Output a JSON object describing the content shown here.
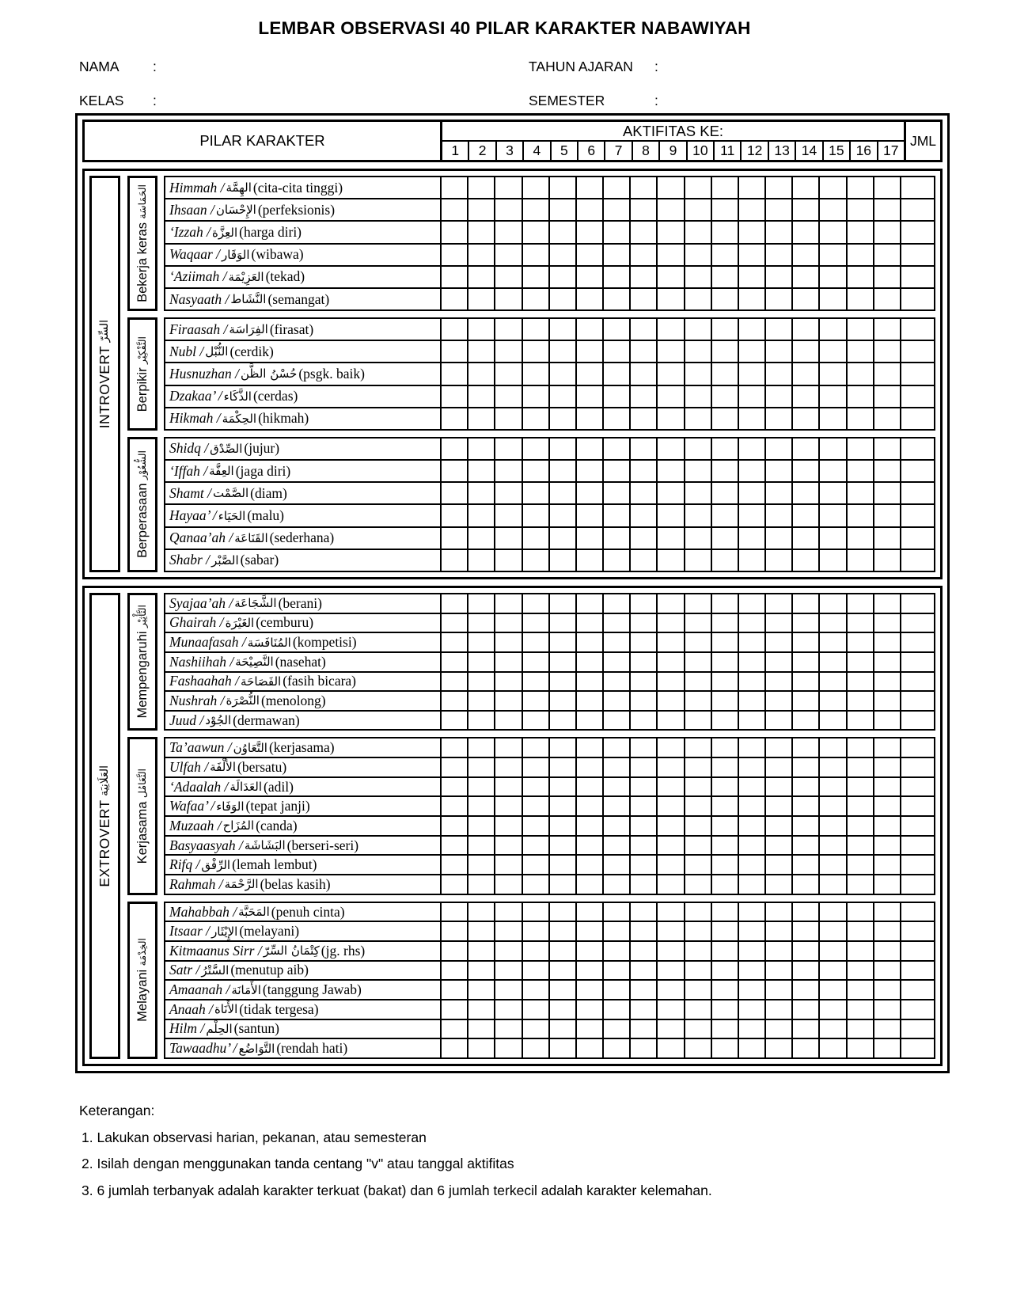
{
  "title": "LEMBAR OBSERVASI 40 PILAR KARAKTER NABAWIYAH",
  "form_fields": {
    "colon": ":",
    "nama_label": "NAMA",
    "kelas_label": "KELAS",
    "tahun_label": "TAHUN AJARAN",
    "semester_label": "SEMESTER"
  },
  "table": {
    "pilar_header": "PILAR KARAKTER",
    "aktifitas_header": "AKTIFITAS KE:",
    "activity_columns": [
      "1",
      "2",
      "3",
      "4",
      "5",
      "6",
      "7",
      "8",
      "9",
      "10",
      "11",
      "12",
      "13",
      "14",
      "15",
      "16",
      "17"
    ],
    "jml_header": "JML",
    "sections": [
      {
        "name": "INTROVERT",
        "arabic": "السِّرّ",
        "groups": [
          {
            "name": "Bekerja keras",
            "arabic": "الحَمَاسَة",
            "rows": [
              {
                "translit": "Himmah",
                "arabic": "الهِمَّة",
                "meaning": "(cita-cita tinggi)"
              },
              {
                "translit": "Ihsaan",
                "arabic": "الإِحْسَان",
                "meaning": "(perfeksionis)"
              },
              {
                "translit": "‘Izzah",
                "arabic": "العِزَّة",
                "meaning": "(harga diri)"
              },
              {
                "translit": "Waqaar",
                "arabic": "الوَقَار",
                "meaning": "(wibawa)"
              },
              {
                "translit": "‘Aziimah",
                "arabic": "العَزِيْمَة",
                "meaning": "(tekad)"
              },
              {
                "translit": "Nasyaath",
                "arabic": "النَّشَاط",
                "meaning": "(semangat)"
              }
            ]
          },
          {
            "name": "Berpikir",
            "arabic": "التَّفْكِيْر",
            "rows": [
              {
                "translit": "Firaasah",
                "arabic": "الفِرَاسَة",
                "meaning": "(firasat)"
              },
              {
                "translit": "Nubl",
                "arabic": "النُّبْل",
                "meaning": "(cerdik)"
              },
              {
                "translit": "Husnuzhan",
                "arabic": "حُسْنُ الظَّن",
                "meaning": "(psgk. baik)"
              },
              {
                "translit": "Dzakaa’",
                "arabic": "الذَّكَاء",
                "meaning": "(cerdas)"
              },
              {
                "translit": "Hikmah",
                "arabic": "الحِكْمَة",
                "meaning": "(hikmah)"
              }
            ]
          },
          {
            "name": "Berperasaan",
            "arabic": "الشُّعُوْر",
            "rows": [
              {
                "translit": "Shidq",
                "arabic": "الصِّدْق",
                "meaning": "(jujur)"
              },
              {
                "translit": "‘Iffah",
                "arabic": "العِفَّة",
                "meaning": "(jaga diri)"
              },
              {
                "translit": "Shamt",
                "arabic": "الصَّمْت",
                "meaning": "(diam)"
              },
              {
                "translit": "Hayaa’",
                "arabic": "الحَيَاء",
                "meaning": "(malu)"
              },
              {
                "translit": "Qanaa’ah",
                "arabic": "القَنَاعَة",
                "meaning": "(sederhana)"
              },
              {
                "translit": "Shabr",
                "arabic": "الصَّبْر",
                "meaning": "(sabar)"
              }
            ]
          }
        ]
      },
      {
        "name": "EXTROVERT",
        "arabic": "العَلَانِيَة",
        "groups": [
          {
            "name": "Mempengaruhi",
            "arabic": "التَّأْثِيْر",
            "rows": [
              {
                "translit": "Syajaa’ah",
                "arabic": "الشَّجَاعَة",
                "meaning": "(berani)"
              },
              {
                "translit": "Ghairah",
                "arabic": "الغَيْرَة",
                "meaning": "(cemburu)"
              },
              {
                "translit": "Munaafasah",
                "arabic": "المُنَافَسَة",
                "meaning": "(kompetisi)"
              },
              {
                "translit": "Nashiihah",
                "arabic": "النَّصِيْحَة",
                "meaning": "(nasehat)"
              },
              {
                "translit": "Fashaahah",
                "arabic": "الفَصَاحَة",
                "meaning": "(fasih bicara)"
              },
              {
                "translit": "Nushrah",
                "arabic": "النُّصْرَة",
                "meaning": "(menolong)"
              },
              {
                "translit": "Juud",
                "arabic": "الجُوْد",
                "meaning": "(dermawan)"
              }
            ]
          },
          {
            "name": "Kerjasama",
            "arabic": "التَّعَامُل",
            "rows": [
              {
                "translit": "Ta’aawun",
                "arabic": "التَّعَاوُن",
                "meaning": "(kerjasama)"
              },
              {
                "translit": "Ulfah",
                "arabic": "الأُلْفَة",
                "meaning": "(bersatu)"
              },
              {
                "translit": "‘Adaalah",
                "arabic": "العَدَالَة",
                "meaning": "(adil)"
              },
              {
                "translit": "Wafaa’",
                "arabic": "الوَفَاء",
                "meaning": "(tepat janji)"
              },
              {
                "translit": "Muzaah",
                "arabic": "المُزَاح",
                "meaning": "(canda)"
              },
              {
                "translit": "Basyaasyah",
                "arabic": "البَشَاشَة",
                "meaning": "(berseri-seri)"
              },
              {
                "translit": "Rifq",
                "arabic": "الرِّفْق",
                "meaning": "(lemah lembut)"
              },
              {
                "translit": "Rahmah",
                "arabic": "الرَّحْمَة",
                "meaning": "(belas kasih)"
              }
            ]
          },
          {
            "name": "Melayani",
            "arabic": "الخِدْمَة",
            "rows": [
              {
                "translit": "Mahabbah",
                "arabic": "المَحَبَّة",
                "meaning": "(penuh cinta)"
              },
              {
                "translit": "Itsaar",
                "arabic": "الإِيْثَار",
                "meaning": "(melayani)"
              },
              {
                "translit": "Kitmaanus Sirr",
                "arabic": "كِتْمَانُ السِّرّ",
                "meaning": "(jg. rhs)"
              },
              {
                "translit": "Satr",
                "arabic": "السَّتْرُ",
                "meaning": "(menutup aib)"
              },
              {
                "translit": "Amaanah",
                "arabic": "الأَمَانَة",
                "meaning": "(tanggung Jawab)"
              },
              {
                "translit": "Anaah",
                "arabic": "الأَنَاة",
                "meaning": "(tidak tergesa)"
              },
              {
                "translit": "Hilm",
                "arabic": "الحِلْم",
                "meaning": "(santun)"
              },
              {
                "translit": "Tawaadhu’",
                "arabic": "التَّوَاضُع",
                "meaning": "(rendah hati)"
              }
            ]
          }
        ]
      }
    ]
  },
  "notes": {
    "heading": "Keterangan:",
    "items": [
      "1. Lakukan observasi harian, pekanan, atau semesteran",
      "2. Isilah dengan menggunakan tanda centang \"v\" atau tanggal aktifitas",
      "3. 6 jumlah terbanyak adalah karakter terkuat (bakat) dan 6 jumlah terkecil adalah karakter kelemahan."
    ]
  }
}
